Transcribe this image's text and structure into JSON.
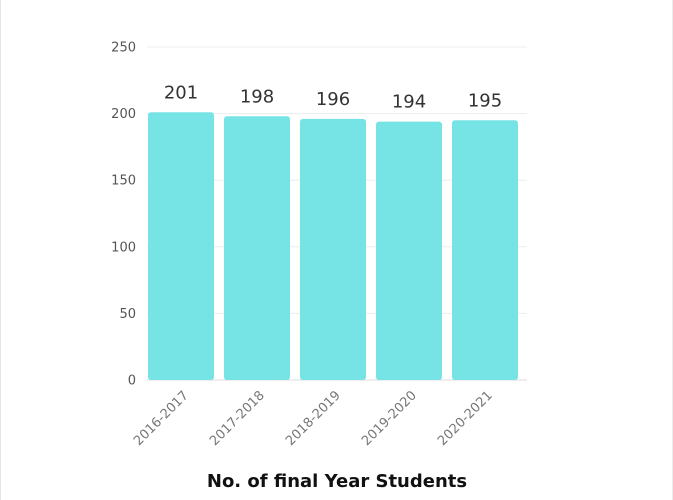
{
  "chart_data": {
    "type": "bar",
    "categories": [
      "2016-2017",
      "2017-2018",
      "2018-2019",
      "2019-2020",
      "2020-2021"
    ],
    "values": [
      201,
      198,
      196,
      194,
      195
    ],
    "xlabel": "No. of final Year Students",
    "ylabel": "",
    "ylim": [
      0,
      250
    ],
    "yticks": [
      0,
      50,
      100,
      150,
      200,
      250
    ],
    "grid": true,
    "bar_color": "#76e3e5",
    "show_data_labels": true
  }
}
